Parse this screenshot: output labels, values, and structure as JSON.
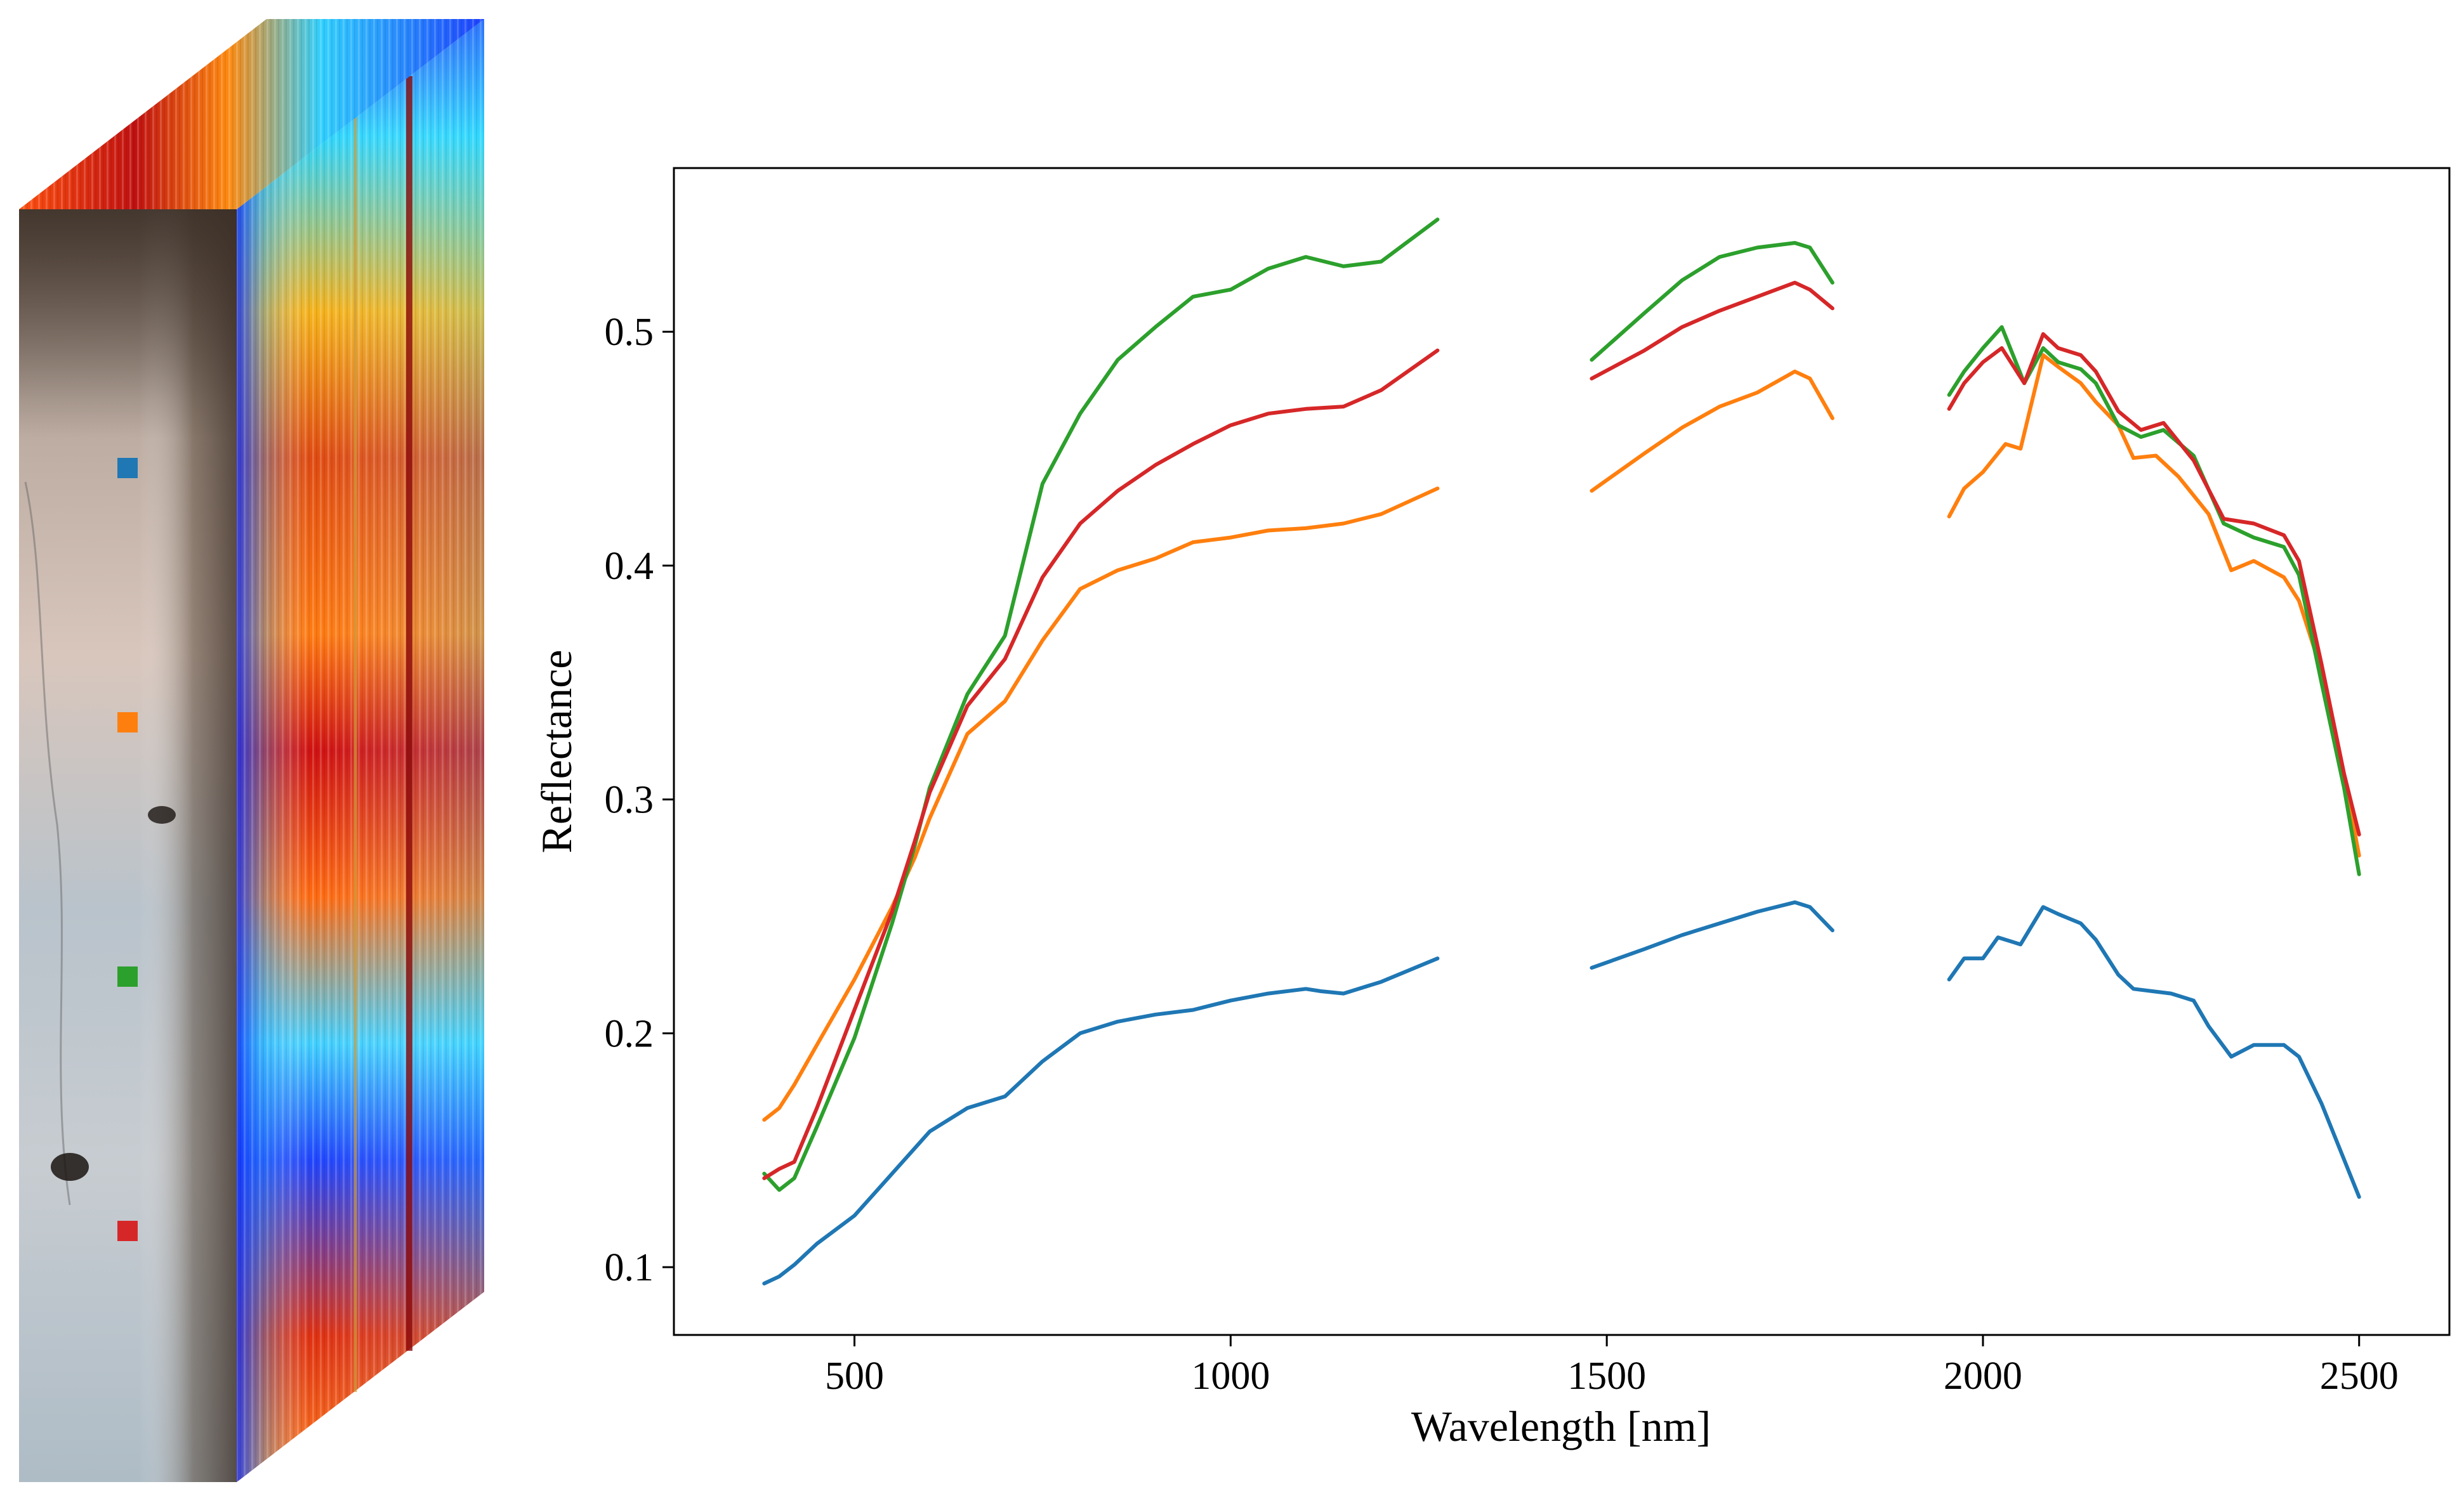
{
  "chart_data": {
    "type": "line",
    "title": "",
    "xlabel": "Wavelength [nm]",
    "ylabel": "Reflectance",
    "xlim": [
      260,
      2620
    ],
    "ylim": [
      0.071,
      0.57
    ],
    "xticks": [
      500,
      1000,
      1500,
      2000,
      2500
    ],
    "yticks": [
      0.1,
      0.2,
      0.3,
      0.4,
      0.5
    ],
    "xtick_labels": [
      "500",
      "1000",
      "1500",
      "2000",
      "2500"
    ],
    "ytick_labels": [
      "0.1",
      "0.2",
      "0.3",
      "0.4",
      "0.5"
    ],
    "grid": false,
    "legend": "none",
    "series": [
      {
        "color": "#1f77b4",
        "segments": [
          [
            [
              380,
              0.093
            ],
            [
              400,
              0.096
            ],
            [
              420,
              0.101
            ],
            [
              450,
              0.11
            ],
            [
              500,
              0.122
            ],
            [
              550,
              0.14
            ],
            [
              600,
              0.158
            ],
            [
              650,
              0.168
            ],
            [
              700,
              0.173
            ],
            [
              750,
              0.188
            ],
            [
              800,
              0.2
            ],
            [
              850,
              0.205
            ],
            [
              900,
              0.208
            ],
            [
              950,
              0.21
            ],
            [
              1000,
              0.214
            ],
            [
              1050,
              0.217
            ],
            [
              1100,
              0.219
            ],
            [
              1120,
              0.218
            ],
            [
              1150,
              0.217
            ],
            [
              1200,
              0.222
            ],
            [
              1275,
              0.232
            ]
          ],
          [
            [
              1480,
              0.228
            ],
            [
              1550,
              0.236
            ],
            [
              1600,
              0.242
            ],
            [
              1650,
              0.247
            ],
            [
              1700,
              0.252
            ],
            [
              1750,
              0.256
            ],
            [
              1770,
              0.254
            ],
            [
              1800,
              0.244
            ]
          ],
          [
            [
              1955,
              0.223
            ],
            [
              1975,
              0.232
            ],
            [
              2000,
              0.232
            ],
            [
              2020,
              0.241
            ],
            [
              2050,
              0.238
            ],
            [
              2080,
              0.254
            ],
            [
              2100,
              0.251
            ],
            [
              2130,
              0.247
            ],
            [
              2150,
              0.24
            ],
            [
              2180,
              0.225
            ],
            [
              2200,
              0.219
            ],
            [
              2250,
              0.217
            ],
            [
              2280,
              0.214
            ],
            [
              2300,
              0.203
            ],
            [
              2330,
              0.19
            ],
            [
              2360,
              0.195
            ],
            [
              2400,
              0.195
            ],
            [
              2420,
              0.19
            ],
            [
              2450,
              0.17
            ],
            [
              2480,
              0.146
            ],
            [
              2500,
              0.13
            ]
          ]
        ]
      },
      {
        "color": "#ff7f0e",
        "segments": [
          [
            [
              380,
              0.163
            ],
            [
              400,
              0.168
            ],
            [
              420,
              0.178
            ],
            [
              450,
              0.195
            ],
            [
              500,
              0.223
            ],
            [
              550,
              0.254
            ],
            [
              580,
              0.275
            ],
            [
              600,
              0.292
            ],
            [
              650,
              0.328
            ],
            [
              700,
              0.342
            ],
            [
              750,
              0.368
            ],
            [
              800,
              0.39
            ],
            [
              850,
              0.398
            ],
            [
              900,
              0.403
            ],
            [
              950,
              0.41
            ],
            [
              1000,
              0.412
            ],
            [
              1050,
              0.415
            ],
            [
              1100,
              0.416
            ],
            [
              1150,
              0.418
            ],
            [
              1200,
              0.422
            ],
            [
              1275,
              0.433
            ]
          ],
          [
            [
              1480,
              0.432
            ],
            [
              1550,
              0.448
            ],
            [
              1600,
              0.459
            ],
            [
              1650,
              0.468
            ],
            [
              1700,
              0.474
            ],
            [
              1750,
              0.483
            ],
            [
              1770,
              0.48
            ],
            [
              1800,
              0.463
            ]
          ],
          [
            [
              1955,
              0.421
            ],
            [
              1975,
              0.433
            ],
            [
              2000,
              0.44
            ],
            [
              2030,
              0.452
            ],
            [
              2050,
              0.45
            ],
            [
              2080,
              0.49
            ],
            [
              2100,
              0.485
            ],
            [
              2130,
              0.478
            ],
            [
              2150,
              0.47
            ],
            [
              2180,
              0.46
            ],
            [
              2200,
              0.446
            ],
            [
              2230,
              0.447
            ],
            [
              2260,
              0.438
            ],
            [
              2300,
              0.422
            ],
            [
              2330,
              0.398
            ],
            [
              2360,
              0.402
            ],
            [
              2400,
              0.395
            ],
            [
              2420,
              0.385
            ],
            [
              2450,
              0.355
            ],
            [
              2480,
              0.31
            ],
            [
              2500,
              0.276
            ]
          ]
        ]
      },
      {
        "color": "#2ca02c",
        "segments": [
          [
            [
              380,
              0.14
            ],
            [
              400,
              0.133
            ],
            [
              420,
              0.138
            ],
            [
              450,
              0.16
            ],
            [
              500,
              0.198
            ],
            [
              550,
              0.247
            ],
            [
              580,
              0.28
            ],
            [
              600,
              0.305
            ],
            [
              650,
              0.345
            ],
            [
              700,
              0.37
            ],
            [
              750,
              0.435
            ],
            [
              800,
              0.465
            ],
            [
              850,
              0.488
            ],
            [
              900,
              0.502
            ],
            [
              950,
              0.515
            ],
            [
              1000,
              0.518
            ],
            [
              1050,
              0.527
            ],
            [
              1100,
              0.532
            ],
            [
              1150,
              0.528
            ],
            [
              1200,
              0.53
            ],
            [
              1275,
              0.548
            ]
          ],
          [
            [
              1480,
              0.488
            ],
            [
              1550,
              0.508
            ],
            [
              1600,
              0.522
            ],
            [
              1650,
              0.532
            ],
            [
              1700,
              0.536
            ],
            [
              1750,
              0.538
            ],
            [
              1770,
              0.536
            ],
            [
              1800,
              0.521
            ]
          ],
          [
            [
              1955,
              0.473
            ],
            [
              1975,
              0.483
            ],
            [
              2000,
              0.493
            ],
            [
              2025,
              0.502
            ],
            [
              2055,
              0.478
            ],
            [
              2080,
              0.493
            ],
            [
              2100,
              0.487
            ],
            [
              2130,
              0.484
            ],
            [
              2150,
              0.478
            ],
            [
              2180,
              0.46
            ],
            [
              2210,
              0.455
            ],
            [
              2240,
              0.458
            ],
            [
              2280,
              0.447
            ],
            [
              2320,
              0.418
            ],
            [
              2360,
              0.412
            ],
            [
              2400,
              0.408
            ],
            [
              2420,
              0.396
            ],
            [
              2450,
              0.35
            ],
            [
              2480,
              0.305
            ],
            [
              2500,
              0.268
            ]
          ]
        ]
      },
      {
        "color": "#d62728",
        "segments": [
          [
            [
              380,
              0.138
            ],
            [
              400,
              0.142
            ],
            [
              420,
              0.145
            ],
            [
              450,
              0.168
            ],
            [
              500,
              0.21
            ],
            [
              550,
              0.252
            ],
            [
              580,
              0.282
            ],
            [
              600,
              0.303
            ],
            [
              650,
              0.34
            ],
            [
              700,
              0.36
            ],
            [
              750,
              0.395
            ],
            [
              800,
              0.418
            ],
            [
              850,
              0.432
            ],
            [
              900,
              0.443
            ],
            [
              950,
              0.452
            ],
            [
              1000,
              0.46
            ],
            [
              1050,
              0.465
            ],
            [
              1100,
              0.467
            ],
            [
              1150,
              0.468
            ],
            [
              1200,
              0.475
            ],
            [
              1275,
              0.492
            ]
          ],
          [
            [
              1480,
              0.48
            ],
            [
              1550,
              0.492
            ],
            [
              1600,
              0.502
            ],
            [
              1650,
              0.509
            ],
            [
              1700,
              0.515
            ],
            [
              1750,
              0.521
            ],
            [
              1770,
              0.518
            ],
            [
              1800,
              0.51
            ]
          ],
          [
            [
              1955,
              0.467
            ],
            [
              1975,
              0.478
            ],
            [
              2000,
              0.487
            ],
            [
              2025,
              0.493
            ],
            [
              2055,
              0.478
            ],
            [
              2080,
              0.499
            ],
            [
              2100,
              0.493
            ],
            [
              2130,
              0.49
            ],
            [
              2150,
              0.483
            ],
            [
              2180,
              0.466
            ],
            [
              2210,
              0.458
            ],
            [
              2240,
              0.461
            ],
            [
              2280,
              0.445
            ],
            [
              2320,
              0.42
            ],
            [
              2360,
              0.418
            ],
            [
              2400,
              0.413
            ],
            [
              2420,
              0.402
            ],
            [
              2450,
              0.358
            ],
            [
              2480,
              0.311
            ],
            [
              2500,
              0.285
            ]
          ]
        ]
      }
    ]
  },
  "cube": {
    "markers": [
      {
        "color": "#1f77b4"
      },
      {
        "color": "#ff7f0e"
      },
      {
        "color": "#2ca02c"
      },
      {
        "color": "#d62728"
      }
    ]
  }
}
